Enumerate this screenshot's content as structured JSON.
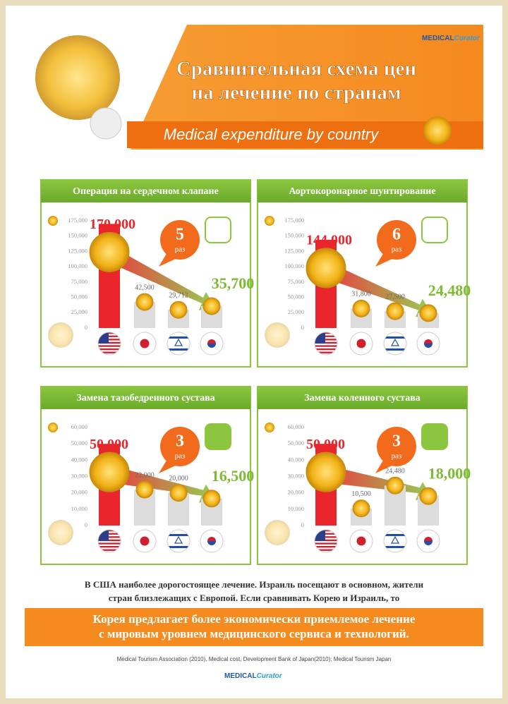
{
  "header": {
    "logo": {
      "brand": "MEDICAL",
      "product": "Curator"
    },
    "title": [
      "Сравнительная схема цен",
      "на лечение по странам"
    ],
    "subtitle": "Medical expenditure by country"
  },
  "chart_data": [
    {
      "type": "bar",
      "title": "Операция на сердечном клапане",
      "categories": [
        null,
        null,
        null,
        null
      ],
      "values": [
        170000,
        42500,
        29712,
        35700
      ],
      "value_labels": [
        "170,000",
        "42,500",
        "29,712",
        "35,700"
      ],
      "colors": [
        "#e8262b",
        "#dcdcdc",
        "#dcdcdc",
        "#dcdcdc"
      ],
      "ylim": [
        0,
        175000
      ],
      "yticks": [
        0,
        {
          "value": 25000,
          "label": "25,000"
        },
        {
          "value": 50000,
          "label": "50,000"
        },
        {
          "value": 75000,
          "label": "75,000"
        },
        {
          "value": 100000,
          "label": "100,000"
        },
        {
          "value": 125000,
          "label": "125,000"
        },
        {
          "value": 150000,
          "label": "150,000"
        },
        {
          "value": 175000,
          "label": "175,000"
        }
      ],
      "annotation": {
        "factor": 5,
        "unit": "раз"
      }
    },
    {
      "type": "bar",
      "title": "Аортокоронарное шунтирование",
      "categories": [
        null,
        null,
        null,
        null
      ],
      "values": [
        144000,
        31800,
        27500,
        24480
      ],
      "value_labels": [
        "144,000",
        "31,800",
        "27,500",
        "24,480"
      ],
      "colors": [
        "#e8262b",
        "#dcdcdc",
        "#dcdcdc",
        "#dcdcdc"
      ],
      "ylim": [
        0,
        175000
      ],
      "yticks": [
        0,
        {
          "value": 25000,
          "label": "25,000"
        },
        {
          "value": 50000,
          "label": "50,000"
        },
        {
          "value": 75000,
          "label": "75,000"
        },
        {
          "value": 100000,
          "label": "100,000"
        },
        {
          "value": 125000,
          "label": "125,000"
        },
        {
          "value": 150000,
          "label": "150,000"
        },
        {
          "value": 175000,
          "label": "175,000"
        }
      ],
      "annotation": {
        "factor": 6,
        "unit": "раз"
      }
    },
    {
      "type": "bar",
      "title": "Замена тазобедренного сустава",
      "categories": [
        null,
        null,
        null,
        null
      ],
      "values": [
        50000,
        22000,
        20000,
        16500
      ],
      "value_labels": [
        "50,000",
        "22,000",
        "20,000",
        "16,500"
      ],
      "colors": [
        "#e8262b",
        "#dcdcdc",
        "#dcdcdc",
        "#dcdcdc"
      ],
      "ylim": [
        0,
        60000
      ],
      "yticks": [
        0,
        {
          "value": 10000,
          "label": "10,000"
        },
        {
          "value": 20000,
          "label": "20,000"
        },
        {
          "value": 30000,
          "label": "30,000"
        },
        {
          "value": 40000,
          "label": "40,000"
        },
        {
          "value": 50000,
          "label": "50,000"
        },
        {
          "value": 60000,
          "label": "60,000"
        }
      ],
      "annotation": {
        "factor": 3,
        "unit": "раз"
      }
    },
    {
      "type": "bar",
      "title": "Замена коленного сустава",
      "categories": [
        null,
        null,
        null,
        null
      ],
      "values": [
        50000,
        10500,
        24480,
        18000
      ],
      "value_labels": [
        "50,000",
        "10,500",
        "24,480",
        "18,000"
      ],
      "colors": [
        "#e8262b",
        "#dcdcdc",
        "#dcdcdc",
        "#dcdcdc"
      ],
      "ylim": [
        0,
        60000
      ],
      "yticks": [
        0,
        {
          "value": 10000,
          "label": "10,000"
        },
        {
          "value": 20000,
          "label": "20,000"
        },
        {
          "value": 30000,
          "label": "30,000"
        },
        {
          "value": 40000,
          "label": "40,000"
        },
        {
          "value": 50000,
          "label": "50,000"
        },
        {
          "value": 60000,
          "label": "60,000"
        }
      ],
      "annotation": {
        "factor": 3,
        "unit": "раз"
      }
    }
  ],
  "body": {
    "lines": [
      "В США наиболее дорогостоящее лечение.  Израиль посещают в основном, жители",
      "стран близлежащих с Европой. Если сравнивать Корею и Израиль, то"
    ],
    "highlight": [
      "Корея предлагает более экономически приемлемое лечение",
      "с мировым уровнем медицинского сервиса и технологий."
    ],
    "source": "Medical Tourism Association (2010), Medical cost, Development Bank of Japan(2010); Medical Tourism Japan"
  }
}
